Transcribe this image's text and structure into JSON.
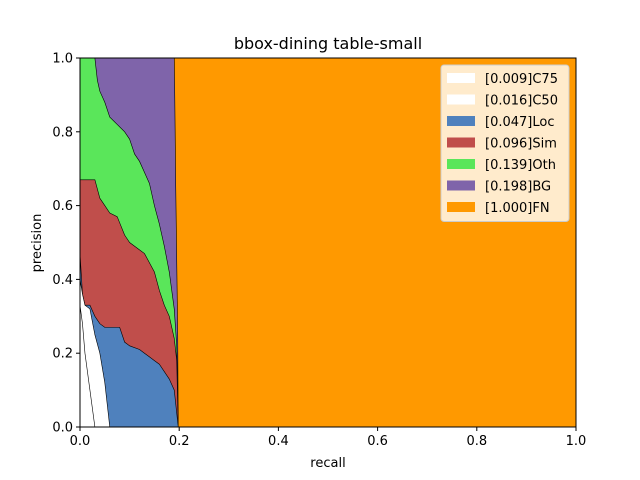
{
  "chart_data": {
    "type": "area",
    "title": "bbox-dining table-small",
    "xlabel": "recall",
    "ylabel": "precision",
    "xlim": [
      0,
      1
    ],
    "ylim": [
      0,
      1
    ],
    "x_ticks": [
      "0.0",
      "0.2",
      "0.4",
      "0.6",
      "0.8",
      "1.0"
    ],
    "y_ticks": [
      "0.0",
      "0.2",
      "0.4",
      "0.6",
      "0.8",
      "1.0"
    ],
    "grid": false,
    "legend_position": "top-right",
    "series": [
      {
        "name": "[1.000]FN",
        "color": "#ff9900",
        "points": [
          [
            0,
            1.0
          ],
          [
            1.0,
            1.0
          ]
        ]
      },
      {
        "name": "[0.198]BG",
        "color": "#7f64aa",
        "points": [
          [
            0,
            1.0
          ],
          [
            0.19,
            1.0
          ],
          [
            0.191,
            0.9
          ],
          [
            0.193,
            0.65
          ],
          [
            0.195,
            0.45
          ],
          [
            0.197,
            0.25
          ],
          [
            0.198,
            0.0
          ]
        ]
      },
      {
        "name": "[0.139]Oth",
        "color": "#5ae65a",
        "points": [
          [
            0,
            1.0
          ],
          [
            0.03,
            1.0
          ],
          [
            0.035,
            0.94
          ],
          [
            0.04,
            0.91
          ],
          [
            0.05,
            0.88
          ],
          [
            0.06,
            0.84
          ],
          [
            0.075,
            0.82
          ],
          [
            0.09,
            0.8
          ],
          [
            0.1,
            0.78
          ],
          [
            0.11,
            0.74
          ],
          [
            0.12,
            0.72
          ],
          [
            0.13,
            0.69
          ],
          [
            0.14,
            0.66
          ],
          [
            0.15,
            0.6
          ],
          [
            0.16,
            0.55
          ],
          [
            0.17,
            0.49
          ],
          [
            0.18,
            0.42
          ],
          [
            0.19,
            0.32
          ],
          [
            0.195,
            0.22
          ],
          [
            0.198,
            0.0
          ]
        ]
      },
      {
        "name": "[0.096]Sim",
        "color": "#c04e4b",
        "points": [
          [
            0,
            0.67
          ],
          [
            0.03,
            0.67
          ],
          [
            0.04,
            0.62
          ],
          [
            0.05,
            0.6
          ],
          [
            0.06,
            0.58
          ],
          [
            0.075,
            0.57
          ],
          [
            0.09,
            0.52
          ],
          [
            0.1,
            0.5
          ],
          [
            0.12,
            0.48
          ],
          [
            0.13,
            0.47
          ],
          [
            0.15,
            0.42
          ],
          [
            0.16,
            0.37
          ],
          [
            0.17,
            0.33
          ],
          [
            0.18,
            0.3
          ],
          [
            0.19,
            0.24
          ],
          [
            0.195,
            0.18
          ],
          [
            0.198,
            0.0
          ]
        ]
      },
      {
        "name": "[0.047]Loc",
        "color": "#4f81bd",
        "points": [
          [
            0,
            0.47
          ],
          [
            0.005,
            0.36
          ],
          [
            0.01,
            0.33
          ],
          [
            0.02,
            0.33
          ],
          [
            0.03,
            0.3
          ],
          [
            0.04,
            0.28
          ],
          [
            0.05,
            0.27
          ],
          [
            0.08,
            0.27
          ],
          [
            0.09,
            0.23
          ],
          [
            0.1,
            0.22
          ],
          [
            0.12,
            0.21
          ],
          [
            0.13,
            0.2
          ],
          [
            0.14,
            0.19
          ],
          [
            0.15,
            0.18
          ],
          [
            0.16,
            0.17
          ],
          [
            0.18,
            0.13
          ],
          [
            0.19,
            0.1
          ],
          [
            0.198,
            0.0
          ]
        ]
      },
      {
        "name": "[0.016]C50",
        "color": "#ffffff",
        "points": [
          [
            0,
            0.4
          ],
          [
            0.005,
            0.36
          ],
          [
            0.01,
            0.33
          ],
          [
            0.02,
            0.32
          ],
          [
            0.03,
            0.25
          ],
          [
            0.04,
            0.2
          ],
          [
            0.05,
            0.12
          ],
          [
            0.055,
            0.06
          ],
          [
            0.06,
            0.0
          ]
        ]
      },
      {
        "name": "[0.009]C75",
        "color": "#ffffff",
        "points": [
          [
            0,
            0.33
          ],
          [
            0.005,
            0.28
          ],
          [
            0.01,
            0.2
          ],
          [
            0.02,
            0.1
          ],
          [
            0.03,
            0.0
          ]
        ]
      }
    ]
  }
}
